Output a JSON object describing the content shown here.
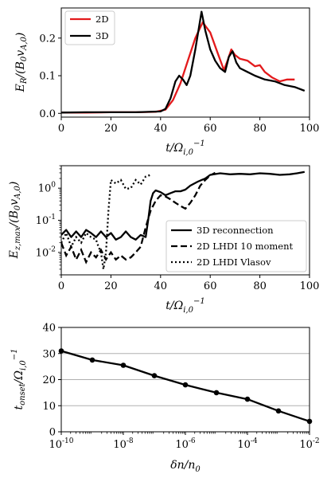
{
  "chart_data": [
    {
      "type": "line",
      "xlabel": "t/Ω_{i,0}^{-1}",
      "ylabel": "E_R/(B_0 v_{A,0})",
      "xlim": [
        0,
        100
      ],
      "ylim": [
        -0.01,
        0.28
      ],
      "xticks": [
        "0",
        "20",
        "40",
        "60",
        "80",
        "100"
      ],
      "yticks": [
        "0.0",
        "0.1",
        "0.2"
      ],
      "legend": "top-left",
      "series": [
        {
          "name": "2D",
          "color": "#e31a1c",
          "x": [
            0,
            10,
            20,
            30,
            38,
            42,
            45,
            48,
            51,
            54,
            57,
            60,
            63,
            65.5,
            67,
            68.5,
            70,
            72,
            75,
            78,
            80,
            82,
            85,
            88,
            91,
            94
          ],
          "y": [
            0.002,
            0.002,
            0.003,
            0.003,
            0.004,
            0.01,
            0.035,
            0.08,
            0.14,
            0.2,
            0.242,
            0.215,
            0.16,
            0.115,
            0.14,
            0.17,
            0.155,
            0.145,
            0.14,
            0.125,
            0.128,
            0.11,
            0.095,
            0.085,
            0.09,
            0.09
          ]
        },
        {
          "name": "3D",
          "color": "#000000",
          "x": [
            0,
            10,
            20,
            30,
            40,
            42,
            44,
            46,
            47.5,
            49,
            50.5,
            52,
            54,
            56.5,
            58,
            60,
            62,
            64,
            66,
            67.5,
            69,
            70.5,
            72,
            75,
            78,
            82,
            86,
            90,
            94,
            98
          ],
          "y": [
            0.002,
            0.003,
            0.003,
            0.003,
            0.005,
            0.012,
            0.04,
            0.085,
            0.1,
            0.09,
            0.075,
            0.1,
            0.17,
            0.27,
            0.22,
            0.17,
            0.14,
            0.12,
            0.11,
            0.15,
            0.165,
            0.135,
            0.12,
            0.11,
            0.1,
            0.09,
            0.085,
            0.075,
            0.07,
            0.06
          ]
        }
      ]
    },
    {
      "type": "line",
      "xlabel": "t/Ω_{i,0}^{-1}",
      "ylabel": "E_{z,max}/(B_0 v_{A,0})",
      "xlim": [
        0,
        100
      ],
      "ylim": [
        0.002,
        5
      ],
      "yscale": "log",
      "xticks": [
        "0",
        "20",
        "40",
        "60",
        "80",
        "100"
      ],
      "yticks": [
        "10^{-2}",
        "10^{-1}",
        "10^{0}"
      ],
      "legend": "bottom-right",
      "series": [
        {
          "name": "3D reconnection",
          "style": "solid",
          "x": [
            0,
            2,
            4,
            6,
            8,
            10,
            12,
            14,
            16,
            18,
            20,
            22,
            24,
            26,
            28,
            30,
            32,
            34,
            35,
            36,
            37,
            38,
            40,
            42,
            44,
            46,
            48,
            50,
            52,
            55,
            58,
            60,
            64,
            68,
            72,
            76,
            80,
            84,
            88,
            92,
            95,
            98
          ],
          "y": [
            0.035,
            0.05,
            0.03,
            0.045,
            0.03,
            0.05,
            0.04,
            0.03,
            0.045,
            0.03,
            0.04,
            0.025,
            0.03,
            0.045,
            0.03,
            0.025,
            0.035,
            0.03,
            0.1,
            0.4,
            0.7,
            0.85,
            0.75,
            0.6,
            0.7,
            0.8,
            0.8,
            0.9,
            1.2,
            1.6,
            2.0,
            2.6,
            2.9,
            2.7,
            2.8,
            2.7,
            2.9,
            2.8,
            2.6,
            2.7,
            2.9,
            3.2
          ]
        },
        {
          "name": "2D LHDI 10 moment",
          "style": "dashed",
          "x": [
            0,
            2,
            4,
            6,
            8,
            10,
            12,
            14,
            16,
            18,
            20,
            22,
            24,
            26,
            28,
            30,
            32,
            34,
            36,
            38,
            40,
            42,
            44,
            46,
            48,
            50,
            52,
            54,
            56,
            58,
            60,
            62
          ],
          "y": [
            0.02,
            0.008,
            0.015,
            0.006,
            0.012,
            0.005,
            0.01,
            0.007,
            0.012,
            0.006,
            0.01,
            0.006,
            0.008,
            0.006,
            0.007,
            0.01,
            0.015,
            0.06,
            0.2,
            0.4,
            0.6,
            0.55,
            0.45,
            0.35,
            0.28,
            0.23,
            0.35,
            0.6,
            1.2,
            1.8,
            2.5,
            3.0
          ]
        },
        {
          "name": "2D LHDI Vlasov",
          "style": "dotted",
          "x": [
            0,
            2,
            4,
            6,
            8,
            10,
            12,
            14,
            15,
            16,
            17,
            18,
            19,
            20,
            22,
            24,
            26,
            28,
            30,
            32,
            34,
            36
          ],
          "y": [
            0.02,
            0.04,
            0.015,
            0.03,
            0.02,
            0.04,
            0.03,
            0.025,
            0.015,
            0.01,
            0.003,
            0.01,
            0.2,
            1.8,
            1.4,
            1.8,
            0.95,
            1.0,
            1.8,
            1.3,
            2.3,
            2.6
          ]
        }
      ]
    },
    {
      "type": "line",
      "xlabel": "δn/n_0",
      "ylabel": "t_{onset}/Ω_{i,0}^{-1}",
      "xscale": "log",
      "xlim": [
        1e-10,
        0.01
      ],
      "ylim": [
        0,
        40
      ],
      "xticks": [
        "10^{-10}",
        "10^{-8}",
        "10^{-6}",
        "10^{-4}",
        "10^{-2}"
      ],
      "yticks": [
        "0",
        "10",
        "20",
        "30",
        "40"
      ],
      "grid": "horizontal",
      "series": [
        {
          "color": "#000000",
          "x": [
            1e-10,
            1e-09,
            1e-08,
            1e-07,
            1e-06,
            1e-05,
            0.0001,
            0.001,
            0.01
          ],
          "y": [
            31,
            27.5,
            25.5,
            21.5,
            18,
            15,
            12.5,
            8,
            4
          ]
        }
      ]
    }
  ]
}
